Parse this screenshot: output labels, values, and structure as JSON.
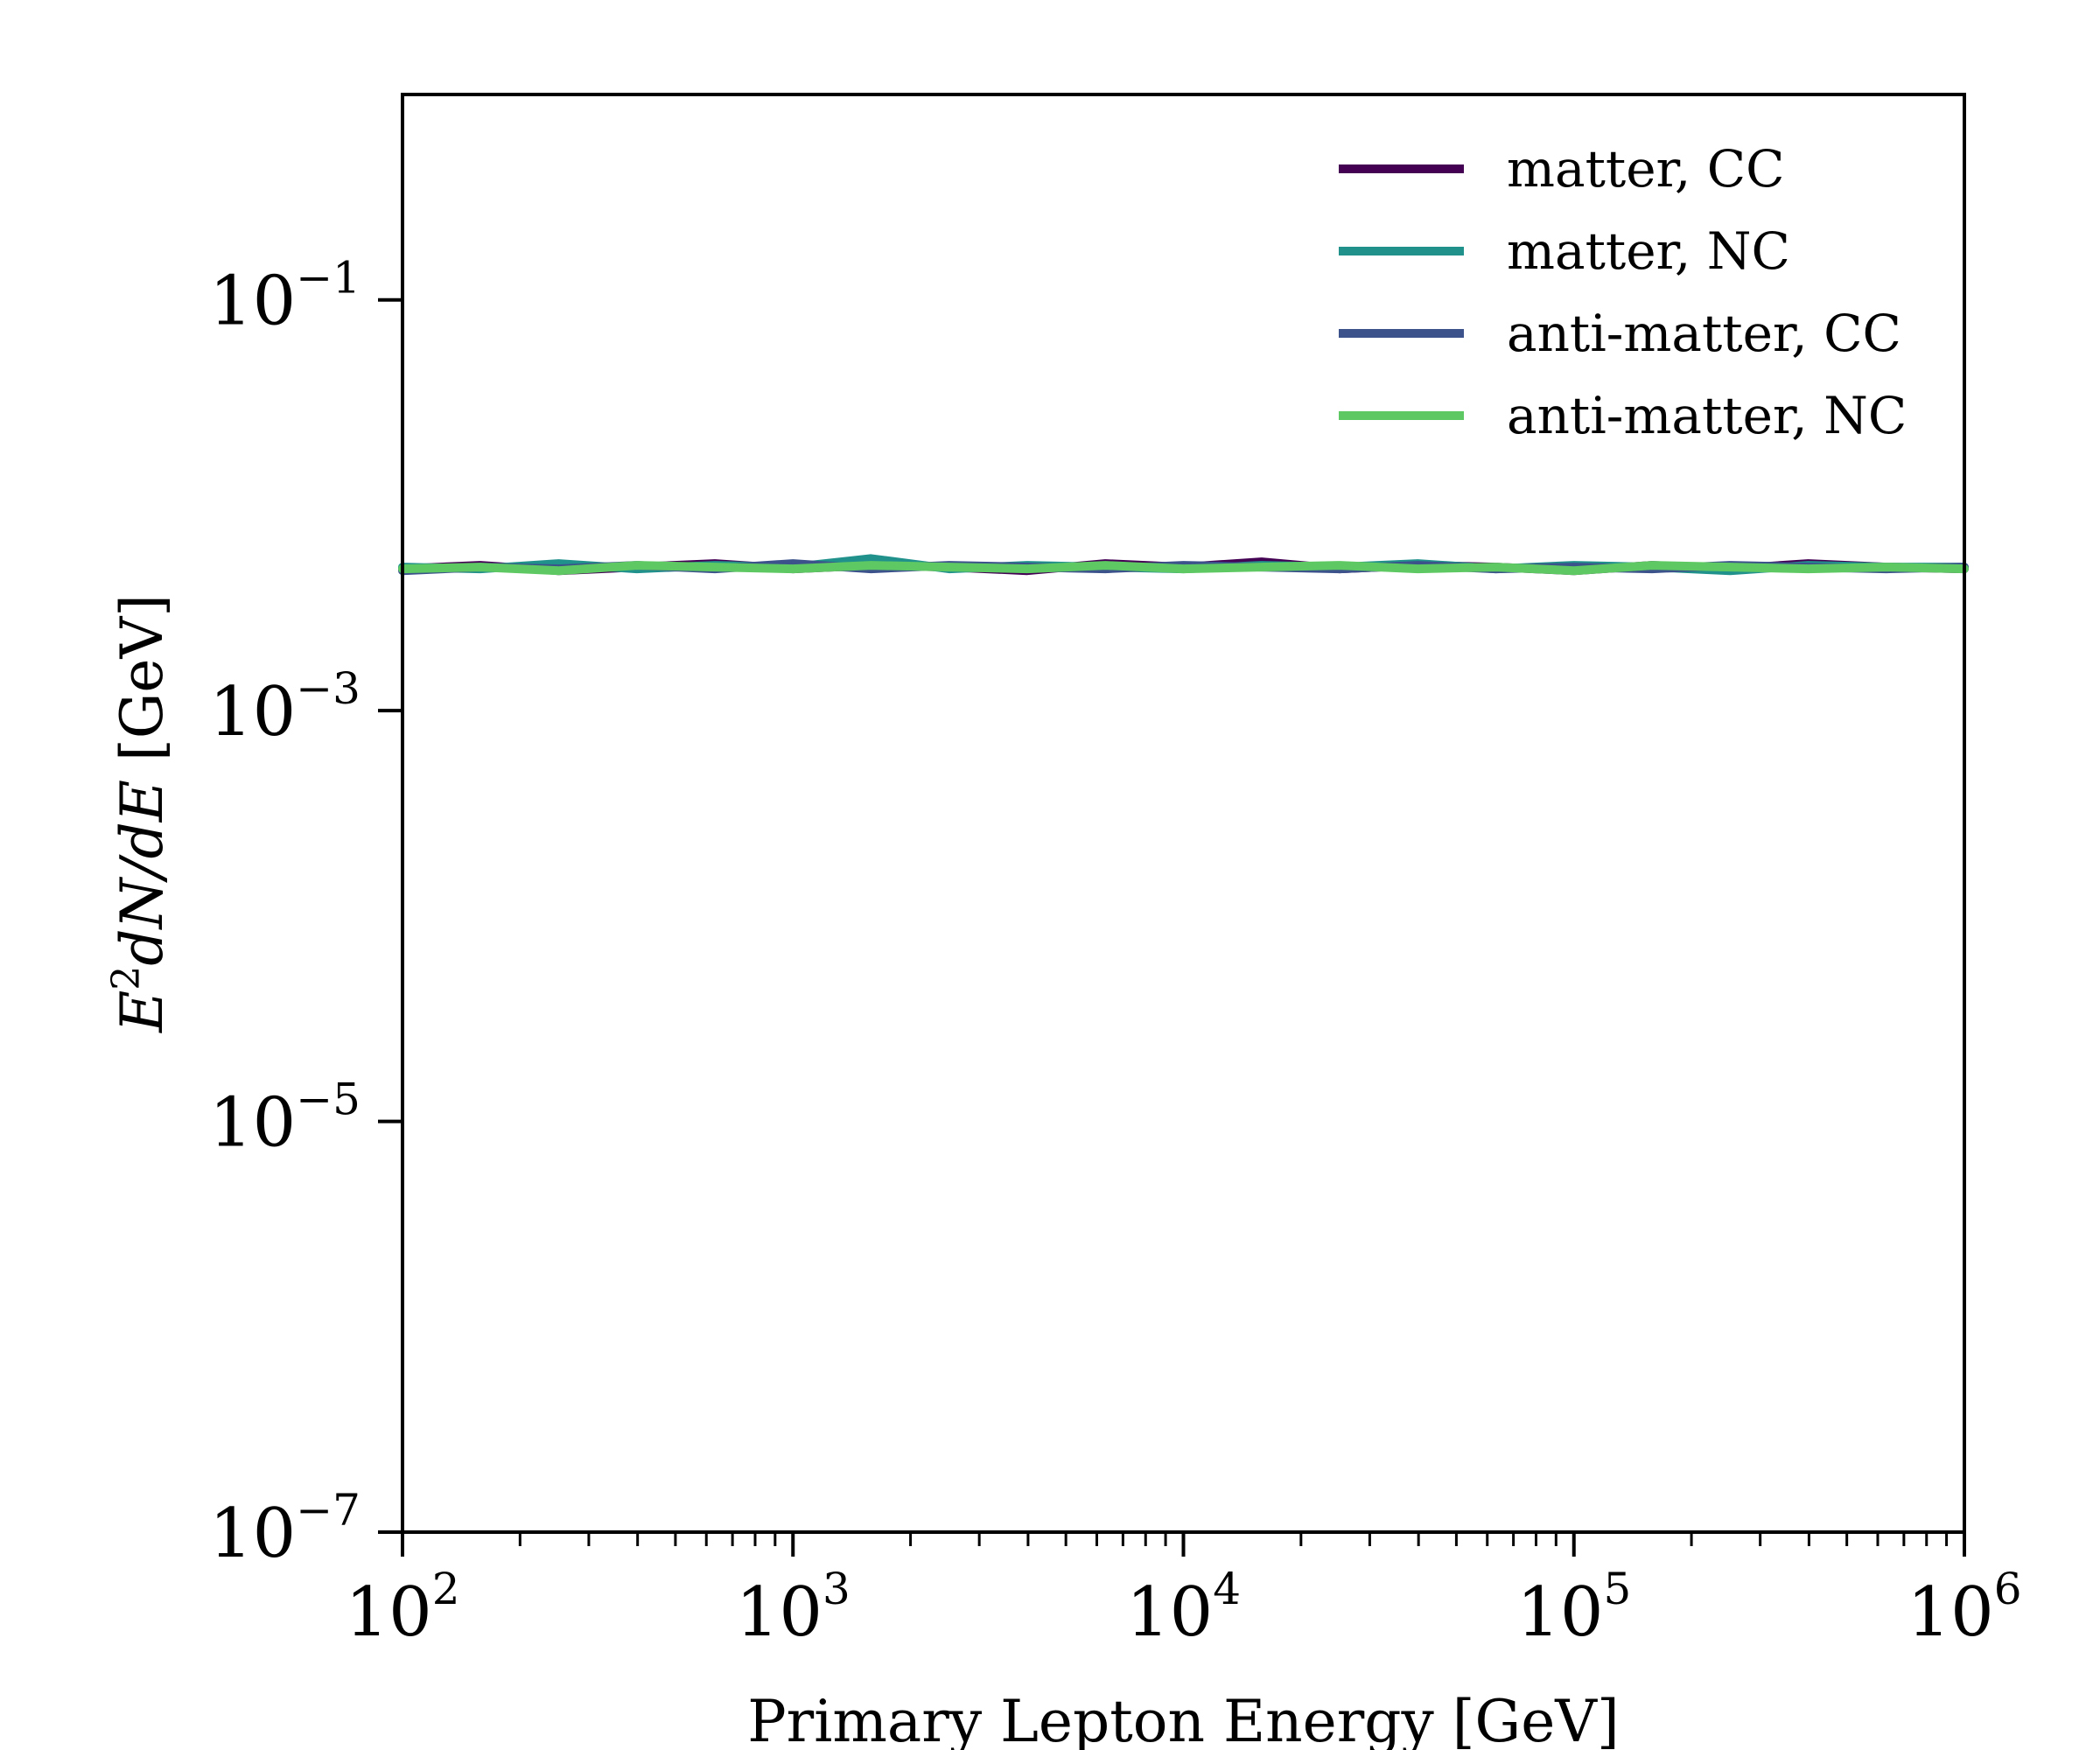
{
  "chart_data": {
    "type": "line",
    "title": "",
    "xlabel": "Primary Lepton Energy [GeV]",
    "ylabel": {
      "base": "E",
      "sup": "2",
      "rest": "dN/dE",
      "unit": " [GeV]"
    },
    "xscale": "log",
    "yscale": "log",
    "xlim": [
      100,
      1000000
    ],
    "ylim": [
      1e-07,
      1
    ],
    "x_ticks": [
      {
        "base": "10",
        "exp": "2"
      },
      {
        "base": "10",
        "exp": "3"
      },
      {
        "base": "10",
        "exp": "4"
      },
      {
        "base": "10",
        "exp": "5"
      },
      {
        "base": "10",
        "exp": "6"
      }
    ],
    "y_ticks": [
      {
        "value": 1e-07,
        "base": "10",
        "exp": "−7"
      },
      {
        "value": 1e-05,
        "base": "10",
        "exp": "−5"
      },
      {
        "value": 0.001,
        "base": "10",
        "exp": "−3"
      },
      {
        "value": 0.1,
        "base": "10",
        "exp": "−1"
      }
    ],
    "grid": false,
    "legend_position": "top-right",
    "x": [
      100,
      158,
      251,
      398,
      631,
      1000,
      1585,
      2512,
      3981,
      6310,
      10000,
      15849,
      25119,
      39811,
      63096,
      100000,
      158489,
      251189,
      398107,
      630957,
      1000000
    ],
    "series": [
      {
        "name": "matter, CC",
        "color": "#440154",
        "values": [
          0.0049,
          0.0051,
          0.0048,
          0.005,
          0.0052,
          0.0049,
          0.0051,
          0.005,
          0.0048,
          0.0052,
          0.005,
          0.0053,
          0.0049,
          0.0051,
          0.005,
          0.0048,
          0.0051,
          0.0049,
          0.0052,
          0.005,
          0.0049
        ]
      },
      {
        "name": "matter, NC",
        "color": "#21918c",
        "values": [
          0.005,
          0.0049,
          0.0052,
          0.0049,
          0.0051,
          0.005,
          0.0055,
          0.0049,
          0.0051,
          0.005,
          0.0049,
          0.0051,
          0.005,
          0.0052,
          0.0049,
          0.0051,
          0.005,
          0.0048,
          0.0051,
          0.005,
          0.005
        ]
      },
      {
        "name": "anti-matter, CC",
        "color": "#3b528b",
        "values": [
          0.0048,
          0.005,
          0.0049,
          0.0051,
          0.0049,
          0.0052,
          0.0049,
          0.0051,
          0.005,
          0.0049,
          0.0051,
          0.005,
          0.0049,
          0.0051,
          0.0049,
          0.005,
          0.0049,
          0.0051,
          0.005,
          0.0049,
          0.005
        ]
      },
      {
        "name": "anti-matter, NC",
        "color": "#5ec962",
        "values": [
          0.0049,
          0.005,
          0.0048,
          0.0051,
          0.005,
          0.0049,
          0.0051,
          0.005,
          0.0049,
          0.0051,
          0.0049,
          0.005,
          0.0051,
          0.0049,
          0.005,
          0.0048,
          0.0051,
          0.005,
          0.0049,
          0.005,
          0.0049
        ]
      }
    ]
  }
}
